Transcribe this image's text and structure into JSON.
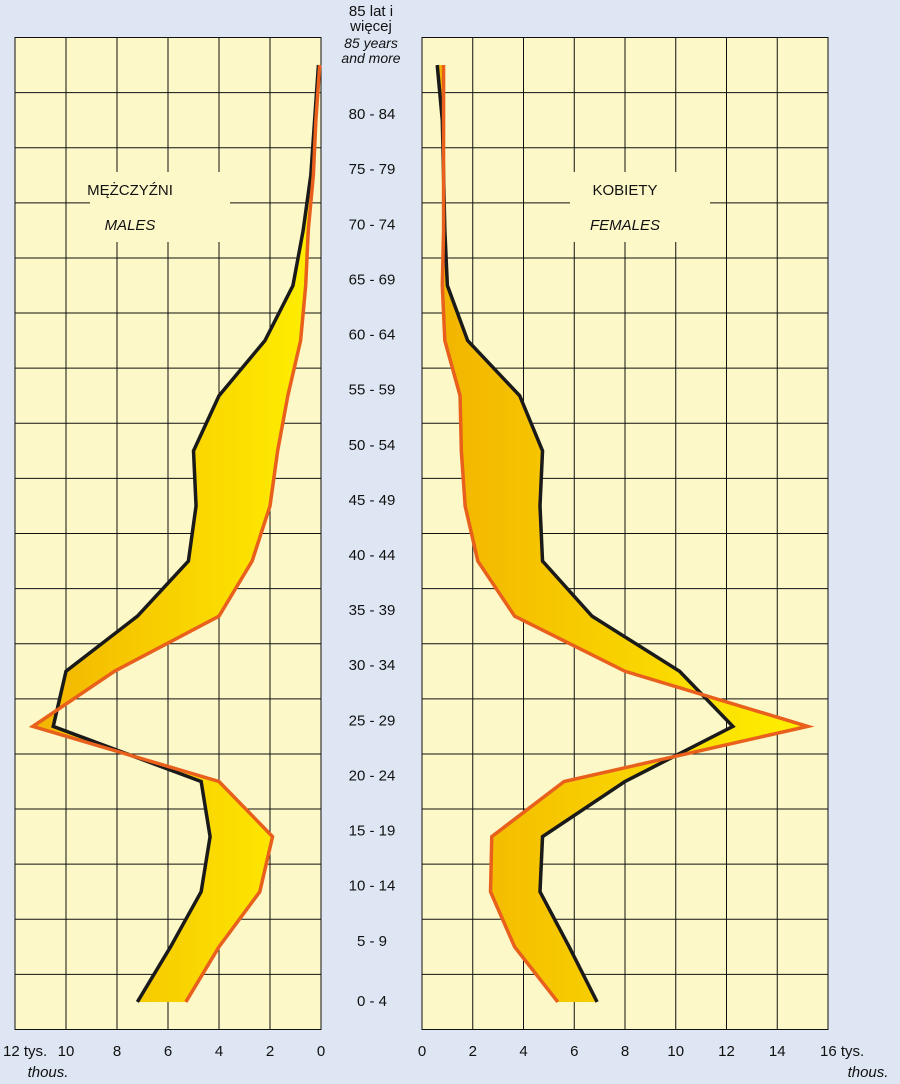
{
  "chart_data": [
    {
      "type": "line",
      "title": "MĘŻCZYŹNI",
      "subtitle": "MALES",
      "categories": [
        "0 - 4",
        "5 - 9",
        "10 - 14",
        "15 - 19",
        "20 - 24",
        "25 - 29",
        "30 - 34",
        "35 - 39",
        "40 - 44",
        "45 - 49",
        "50 - 54",
        "55 - 59",
        "60 - 64",
        "65 - 69",
        "70 - 74",
        "75 - 79",
        "80 - 84",
        "85 lat i więcej"
      ],
      "category_note": "85 years and more",
      "xlim": [
        12,
        0
      ],
      "xticks": [
        {
          "value": 12,
          "label": "12 tys."
        },
        10,
        8,
        6,
        4,
        2,
        0
      ],
      "x_unit": "thous.",
      "series": [
        {
          "color": "#1a1a1a",
          "values": [
            7.2,
            5.9,
            4.7,
            4.35,
            4.7,
            10.5,
            10.0,
            7.2,
            5.2,
            4.9,
            5.0,
            4.0,
            2.2,
            1.1,
            0.7,
            0.4,
            0.25,
            0.1
          ]
        },
        {
          "color": "#e8601c",
          "values": [
            5.3,
            4.0,
            2.4,
            1.9,
            4.0,
            11.3,
            8.1,
            4.0,
            2.7,
            2.0,
            1.7,
            1.3,
            0.8,
            0.6,
            0.5,
            0.3,
            0.2,
            0.05
          ]
        }
      ],
      "grid": true
    },
    {
      "type": "line",
      "title": "KOBIETY",
      "subtitle": "FEMALES",
      "xlim": [
        0,
        16
      ],
      "xticks": [
        0,
        2,
        4,
        6,
        8,
        10,
        12,
        14,
        {
          "value": 16,
          "label": "16 tys."
        }
      ],
      "x_unit": "thous.",
      "series": [
        {
          "color": "#1a1a1a",
          "values": [
            6.9,
            5.8,
            4.65,
            4.75,
            8.0,
            12.25,
            10.15,
            6.7,
            4.75,
            4.65,
            4.75,
            3.85,
            1.8,
            1.0,
            0.9,
            0.85,
            0.8,
            0.6
          ]
        },
        {
          "color": "#e8601c",
          "values": [
            5.35,
            3.65,
            2.7,
            2.75,
            5.6,
            15.2,
            8.0,
            3.65,
            2.2,
            1.7,
            1.55,
            1.5,
            0.9,
            0.8,
            0.85,
            0.85,
            0.85,
            0.85
          ]
        }
      ],
      "grid": true
    }
  ]
}
